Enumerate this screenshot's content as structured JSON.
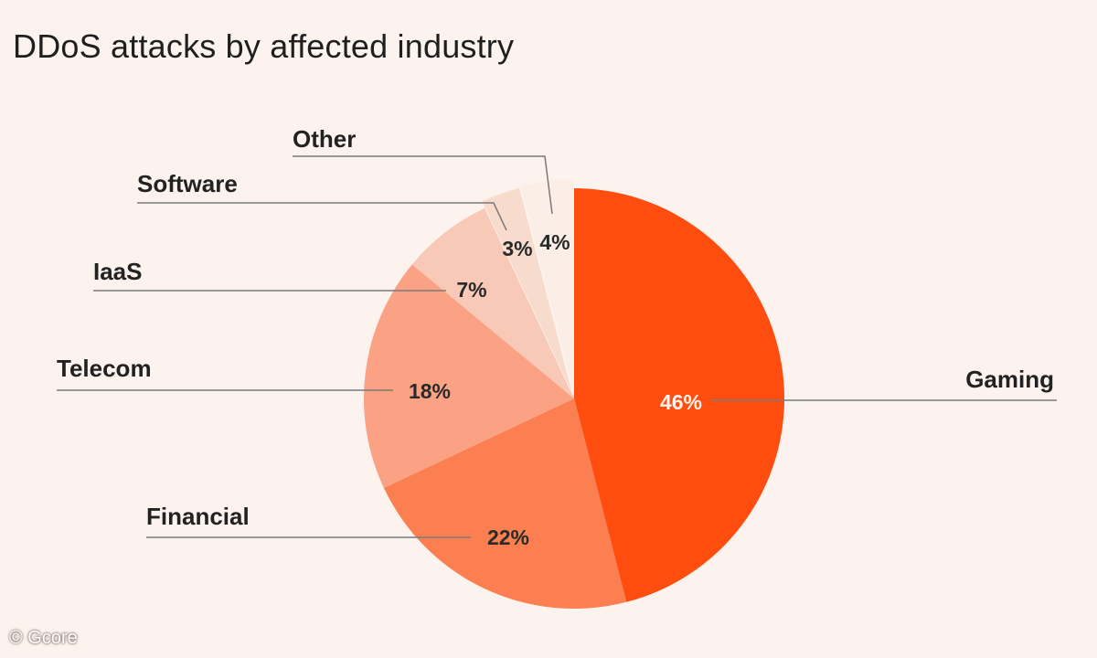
{
  "title": "DDoS attacks by affected industry",
  "credit": "© Gcore",
  "chart_data": {
    "type": "pie",
    "title": "DDoS attacks by affected industry",
    "unit": "%",
    "slices": [
      {
        "label": "Gaming",
        "value": 46,
        "display": "46%",
        "color": "#ff4d0f"
      },
      {
        "label": "Financial",
        "value": 22,
        "display": "22%",
        "color": "#fb7f50"
      },
      {
        "label": "Telecom",
        "value": 18,
        "display": "18%",
        "color": "#fba284"
      },
      {
        "label": "IaaS",
        "value": 7,
        "display": "7%",
        "color": "#f9c9b7"
      },
      {
        "label": "Software",
        "value": 3,
        "display": "3%",
        "color": "#f7dccd"
      },
      {
        "label": "Other",
        "value": 4,
        "display": "4%",
        "color": "#fbeee6"
      }
    ]
  }
}
